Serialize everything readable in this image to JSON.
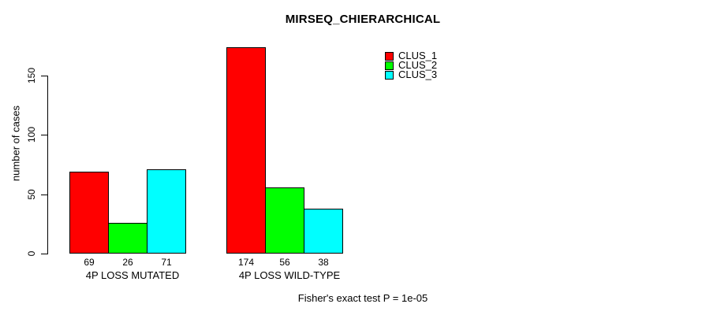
{
  "title": "MIRSEQ_CHIERARCHICAL",
  "y_axis": {
    "label": "number of cases"
  },
  "footer": "Fisher's exact test P = 1e-05",
  "legend": {
    "items": [
      {
        "label": "CLUS_1",
        "color": "#FF0000"
      },
      {
        "label": "CLUS_2",
        "color": "#00FF00"
      },
      {
        "label": "CLUS_3",
        "color": "#00FFFF"
      }
    ]
  },
  "chart_data": {
    "type": "bar",
    "categories": [
      "4P LOSS MUTATED",
      "4P LOSS WILD-TYPE"
    ],
    "series": [
      {
        "name": "CLUS_1",
        "values": [
          69,
          174
        ],
        "color": "#FF0000"
      },
      {
        "name": "CLUS_2",
        "values": [
          26,
          56
        ],
        "color": "#00FF00"
      },
      {
        "name": "CLUS_3",
        "values": [
          71,
          38
        ],
        "color": "#00FFFF"
      }
    ],
    "bar_value_labels": true,
    "title": "MIRSEQ_CHIERARCHICAL",
    "xlabel": "",
    "ylabel": "number of cases",
    "ylim": [
      0,
      175
    ],
    "yticks": [
      0,
      50,
      100,
      150
    ],
    "grid": false,
    "legend_position": "top-right",
    "annotation": "Fisher's exact test P = 1e-05"
  }
}
